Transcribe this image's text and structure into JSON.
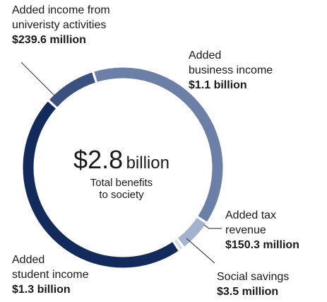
{
  "chart_data": {
    "type": "pie",
    "variant": "donut",
    "center_amount": "$2.8",
    "center_unit": "billion",
    "center_sub": [
      "Total benefits",
      "to society"
    ],
    "segments": [
      {
        "lines": [
          "Added income from",
          "univeristy activities"
        ],
        "value_label": "$239.6 million",
        "value": 239.6,
        "color": "#3a5180"
      },
      {
        "lines": [
          "Added",
          "business income"
        ],
        "value_label": "$1.1 billion",
        "value": 1100,
        "color": "#6b7fa7"
      },
      {
        "lines": [
          "Added tax",
          "revenue"
        ],
        "value_label": "$150.3 million",
        "value": 150.3,
        "color": "#a3b2cf"
      },
      {
        "lines": [
          "Social savings"
        ],
        "value_label": "$3.5 million",
        "value": 3.5,
        "color": "#d5dcea"
      },
      {
        "lines": [
          "Added",
          "student income"
        ],
        "value_label": "$1.3 billion",
        "value": 1300,
        "color": "#132a5c"
      }
    ]
  }
}
